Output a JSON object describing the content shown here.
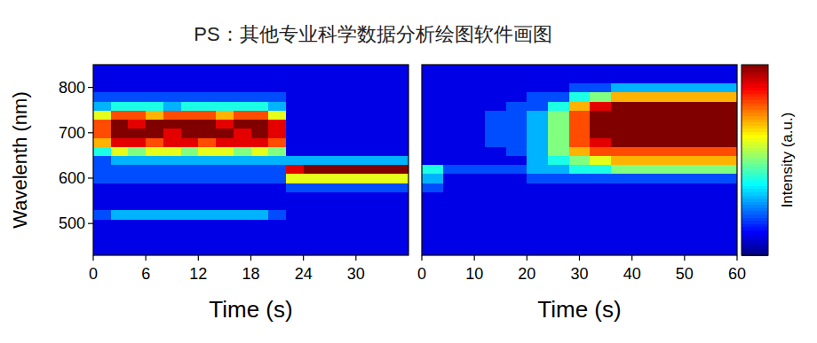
{
  "title": "PS：其他专业科学数据分析绘图软件画图",
  "colorbar": {
    "label": "Intensity (a.u.)",
    "range": [
      0,
      10
    ],
    "tick_labels": false
  },
  "chart_data": [
    {
      "type": "heatmap",
      "x_label": "Time (s)",
      "y_label": "Wavelenth (nm)",
      "xlim": [
        0,
        36
      ],
      "xticks": [
        0,
        6,
        12,
        18,
        24,
        30
      ],
      "ylim": [
        430,
        850
      ],
      "yticks": [
        500,
        600,
        700,
        800
      ],
      "tick_labels": true,
      "x": [
        1,
        3,
        5,
        7,
        9,
        11,
        13,
        15,
        17,
        19,
        21,
        23,
        25,
        27,
        29,
        31,
        33,
        35
      ],
      "y": [
        440,
        460,
        480,
        500,
        520,
        540,
        560,
        580,
        600,
        620,
        640,
        660,
        680,
        700,
        720,
        740,
        760,
        780,
        800,
        820,
        840
      ],
      "values": [
        [
          1,
          1,
          1,
          1,
          1,
          1,
          1,
          1,
          1,
          1,
          1,
          1,
          1,
          1,
          1,
          1,
          1,
          1
        ],
        [
          1,
          1,
          1,
          1,
          1,
          1,
          1,
          1,
          1,
          1,
          1,
          1,
          1,
          1,
          1,
          1,
          1,
          1
        ],
        [
          1,
          1,
          1,
          1,
          1,
          1,
          1,
          1,
          1,
          1,
          1,
          1,
          1,
          1,
          1,
          1,
          1,
          1
        ],
        [
          1,
          1,
          1,
          1,
          1,
          1,
          1,
          1,
          1,
          1,
          1,
          1,
          1,
          1,
          1,
          1,
          1,
          1
        ],
        [
          2,
          3,
          3,
          3,
          3,
          3,
          3,
          3,
          3,
          3,
          2,
          1,
          1,
          1,
          1,
          1,
          1,
          1
        ],
        [
          1,
          1,
          1,
          1,
          1,
          1,
          1,
          1,
          1,
          1,
          1,
          1,
          1,
          1,
          1,
          1,
          1,
          1
        ],
        [
          1,
          1,
          1,
          1,
          1,
          1,
          1,
          1,
          1,
          1,
          1,
          1,
          1,
          1,
          1,
          1,
          1,
          1
        ],
        [
          1,
          1,
          1,
          1,
          1,
          1,
          1,
          1,
          1,
          1,
          1,
          2,
          2,
          2,
          2,
          2,
          2,
          2
        ],
        [
          2,
          2,
          2,
          2,
          2,
          2,
          2,
          2,
          2,
          2,
          2,
          6,
          6,
          6,
          6,
          6,
          6,
          6
        ],
        [
          2,
          2,
          2,
          2,
          2,
          2,
          2,
          2,
          2,
          2,
          2,
          9,
          10,
          10,
          10,
          10,
          10,
          10
        ],
        [
          2,
          3,
          3,
          3,
          3,
          3,
          3,
          3,
          3,
          3,
          3,
          3,
          3,
          3,
          3,
          3,
          3,
          3
        ],
        [
          4,
          6,
          5,
          6,
          6,
          5,
          6,
          6,
          5,
          6,
          5,
          1,
          1,
          1,
          1,
          1,
          1,
          1
        ],
        [
          7,
          9,
          9,
          8,
          9,
          9,
          8,
          9,
          9,
          9,
          8,
          1,
          1,
          1,
          1,
          1,
          1,
          1
        ],
        [
          8,
          10,
          10,
          10,
          9,
          10,
          10,
          10,
          9,
          10,
          9,
          1,
          1,
          1,
          1,
          1,
          1,
          1
        ],
        [
          8,
          10,
          9,
          10,
          10,
          10,
          10,
          9,
          10,
          10,
          9,
          1,
          1,
          1,
          1,
          1,
          1,
          1
        ],
        [
          6,
          8,
          8,
          7,
          8,
          8,
          8,
          7,
          8,
          8,
          6,
          1,
          1,
          1,
          1,
          1,
          1,
          1
        ],
        [
          3,
          4,
          4,
          4,
          3,
          4,
          4,
          4,
          4,
          4,
          3,
          1,
          1,
          1,
          1,
          1,
          1,
          1
        ],
        [
          2,
          2,
          2,
          2,
          2,
          2,
          2,
          2,
          2,
          2,
          2,
          1,
          1,
          1,
          1,
          1,
          1,
          1
        ],
        [
          1,
          1,
          1,
          1,
          1,
          1,
          1,
          1,
          1,
          1,
          1,
          1,
          1,
          1,
          1,
          1,
          1,
          1
        ],
        [
          1,
          1,
          1,
          1,
          1,
          1,
          1,
          1,
          1,
          1,
          1,
          1,
          1,
          1,
          1,
          1,
          1,
          1
        ],
        [
          1,
          1,
          1,
          1,
          1,
          1,
          1,
          1,
          1,
          1,
          1,
          1,
          1,
          1,
          1,
          1,
          1,
          1
        ]
      ]
    },
    {
      "type": "heatmap",
      "x_label": "Time (s)",
      "xlim": [
        0,
        60
      ],
      "xticks": [
        0,
        10,
        20,
        30,
        40,
        50,
        60
      ],
      "ylim": [
        430,
        850
      ],
      "tick_labels": "x",
      "x": [
        2,
        6,
        10,
        14,
        18,
        22,
        26,
        30,
        34,
        38,
        42,
        46,
        50,
        54,
        58
      ],
      "y": [
        440,
        460,
        480,
        500,
        520,
        540,
        560,
        580,
        600,
        620,
        640,
        660,
        680,
        700,
        720,
        740,
        760,
        780,
        800,
        820,
        840
      ],
      "values": [
        [
          1,
          1,
          1,
          1,
          1,
          1,
          1,
          1,
          1,
          1,
          1,
          1,
          1,
          1,
          1
        ],
        [
          1,
          1,
          1,
          1,
          1,
          1,
          1,
          1,
          1,
          1,
          1,
          1,
          1,
          1,
          1
        ],
        [
          1,
          1,
          1,
          1,
          1,
          1,
          1,
          1,
          1,
          1,
          1,
          1,
          1,
          1,
          1
        ],
        [
          1,
          1,
          1,
          1,
          1,
          1,
          1,
          1,
          1,
          1,
          1,
          1,
          1,
          1,
          1
        ],
        [
          1,
          1,
          1,
          1,
          1,
          1,
          1,
          1,
          1,
          1,
          1,
          1,
          1,
          1,
          1
        ],
        [
          1,
          1,
          1,
          1,
          1,
          1,
          1,
          1,
          1,
          1,
          1,
          1,
          1,
          1,
          1
        ],
        [
          1,
          1,
          1,
          1,
          1,
          1,
          1,
          1,
          1,
          1,
          1,
          1,
          1,
          1,
          1
        ],
        [
          2,
          1,
          1,
          1,
          1,
          1,
          1,
          1,
          1,
          1,
          1,
          1,
          1,
          1,
          1
        ],
        [
          3,
          1,
          1,
          1,
          1,
          2,
          2,
          2,
          2,
          2,
          2,
          2,
          2,
          2,
          2
        ],
        [
          4,
          2,
          2,
          2,
          2,
          3,
          3,
          4,
          4,
          5,
          5,
          5,
          5,
          5,
          5
        ],
        [
          1,
          1,
          1,
          1,
          1,
          3,
          4,
          5,
          6,
          7,
          7,
          7,
          7,
          7,
          7
        ],
        [
          1,
          1,
          1,
          1,
          2,
          3,
          5,
          7,
          8,
          8,
          8,
          8,
          8,
          8,
          8
        ],
        [
          1,
          1,
          1,
          2,
          2,
          3,
          5,
          8,
          9,
          10,
          10,
          10,
          10,
          10,
          10
        ],
        [
          1,
          1,
          1,
          2,
          2,
          3,
          5,
          8,
          10,
          10,
          10,
          10,
          10,
          10,
          10
        ],
        [
          1,
          1,
          1,
          2,
          2,
          3,
          5,
          8,
          10,
          10,
          10,
          10,
          10,
          10,
          10
        ],
        [
          1,
          1,
          1,
          2,
          2,
          3,
          5,
          8,
          10,
          10,
          10,
          10,
          10,
          10,
          10
        ],
        [
          1,
          1,
          1,
          1,
          2,
          2,
          4,
          7,
          9,
          10,
          10,
          10,
          10,
          10,
          10
        ],
        [
          1,
          1,
          1,
          1,
          1,
          2,
          2,
          4,
          5,
          7,
          7,
          7,
          7,
          7,
          7
        ],
        [
          1,
          1,
          1,
          1,
          1,
          1,
          1,
          2,
          2,
          3,
          3,
          3,
          3,
          3,
          3
        ],
        [
          1,
          1,
          1,
          1,
          1,
          1,
          1,
          1,
          1,
          1,
          1,
          1,
          1,
          1,
          1
        ],
        [
          1,
          1,
          1,
          1,
          1,
          1,
          1,
          1,
          1,
          1,
          1,
          1,
          1,
          1,
          1
        ]
      ]
    }
  ]
}
